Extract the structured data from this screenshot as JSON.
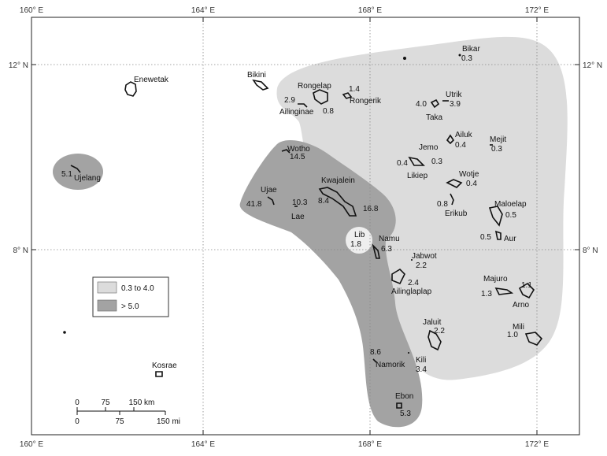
{
  "axes": {
    "top": [
      "160° E",
      "164° E",
      "168° E",
      "172° E"
    ],
    "bottom": [
      "160° E",
      "164° E",
      "168° E",
      "172° E"
    ],
    "left": [
      "12° N",
      "8° N"
    ],
    "right": [
      "12° N",
      "8° N"
    ]
  },
  "legend": {
    "items": [
      {
        "label": "0.3 to 4.0",
        "color": "#dcdcdc"
      },
      {
        "label": "> 5.0",
        "color": "#a3a3a3"
      }
    ]
  },
  "scale_bar": {
    "km_ticks": [
      "0",
      "75",
      "150 km"
    ],
    "mi_ticks": [
      "0",
      "75",
      "150 mi"
    ]
  },
  "atolls": [
    {
      "name": "Enewetak"
    },
    {
      "name": "Ujelang",
      "value": "5.1"
    },
    {
      "name": "Bikini"
    },
    {
      "name": "Rongelap",
      "value": "2.9"
    },
    {
      "name": "Ailinginae",
      "value": "0.8"
    },
    {
      "name": "Rongerik",
      "value": "1.4"
    },
    {
      "name": "Bikar",
      "value": "0.3"
    },
    {
      "name": "Utrik",
      "value": "3.9"
    },
    {
      "name": "Taka",
      "value": "4.0"
    },
    {
      "name": "Ailuk",
      "value": "0.4"
    },
    {
      "name": "Mejit",
      "value": "0.3"
    },
    {
      "name": "Jemo",
      "value": "0.3"
    },
    {
      "name": "Likiep",
      "value": "0.4"
    },
    {
      "name": "Wotje",
      "value": "0.4"
    },
    {
      "name": "Erikub",
      "value": "0.8"
    },
    {
      "name": "Maloelap",
      "value": "0.5"
    },
    {
      "name": "Aur",
      "value": "0.5"
    },
    {
      "name": "Wotho",
      "value": "14.5"
    },
    {
      "name": "Ujae",
      "value": "41.8"
    },
    {
      "name": "Lae",
      "value": "10.3"
    },
    {
      "name": "Kwajalein",
      "value": "8.4"
    },
    {
      "name": "Kwajalein-2",
      "value": "16.8"
    },
    {
      "name": "Lib",
      "value": "1.8"
    },
    {
      "name": "Namu",
      "value": "6.3"
    },
    {
      "name": "Jabwot",
      "value": "2.2"
    },
    {
      "name": "Ailinglaplap",
      "value": "2.4"
    },
    {
      "name": "Majuro",
      "value": "1.3"
    },
    {
      "name": "Arno",
      "value": "1.1"
    },
    {
      "name": "Mili",
      "value": "1.0"
    },
    {
      "name": "Jaluit",
      "value": "2.2"
    },
    {
      "name": "Namorik",
      "value": "8.6"
    },
    {
      "name": "Kili",
      "value": "3.4"
    },
    {
      "name": "Ebon",
      "value": "5.3"
    },
    {
      "name": "Kosrae"
    }
  ]
}
